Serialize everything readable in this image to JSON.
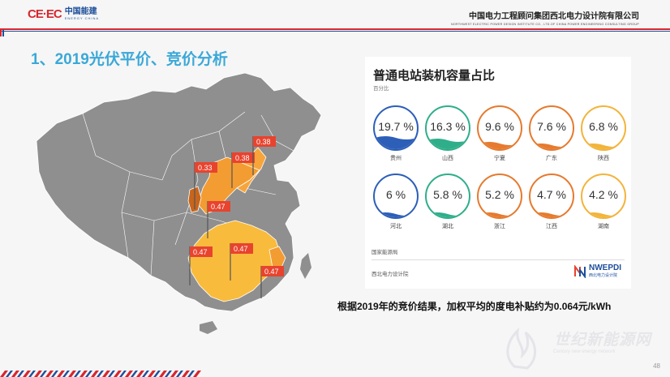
{
  "header": {
    "logo_mark_left": "CE",
    "logo_mark_right": "EC",
    "logo_cn": "中国能建",
    "logo_en": "ENERGY CHINA",
    "company_cn": "中国电力工程顾问集团西北电力设计院有限公司",
    "company_en": "NORTHWEST ELECTRIC POWER DESIGN INSTITUTE CO., LTD.OF CHINA POWER ENGINEERING CONSULTING GROUP"
  },
  "slide_title": "1、2019光伏平价、竞价分析",
  "map": {
    "flags": [
      {
        "id": "flag-1",
        "label": "0.33"
      },
      {
        "id": "flag-2",
        "label": "0.38"
      },
      {
        "id": "flag-3",
        "label": "0.38"
      },
      {
        "id": "flag-4",
        "label": "0.47"
      },
      {
        "id": "flag-5",
        "label": "0.47"
      },
      {
        "id": "flag-6",
        "label": "0.47"
      },
      {
        "id": "flag-7",
        "label": "0.47"
      }
    ]
  },
  "panel": {
    "title": "普通电站装机容量占比",
    "subtitle": "百分比",
    "source_1": "国家能源局",
    "source_2": "西北电力设计院",
    "logo_text": "NWEPDI",
    "logo_sub": "西北电力设计院"
  },
  "chart_data": {
    "type": "table",
    "title": "普通电站装机容量占比",
    "unit": "百分比",
    "categories": [
      "贵州",
      "山西",
      "宁夏",
      "广东",
      "陕西",
      "河北",
      "湖北",
      "浙江",
      "江西",
      "湖南"
    ],
    "values": [
      19.7,
      16.3,
      9.6,
      7.6,
      6.8,
      6,
      5.8,
      5.2,
      4.7,
      4.2
    ],
    "display": [
      "19.7 %",
      "16.3 %",
      "9.6 %",
      "7.6 %",
      "6.8 %",
      "6 %",
      "5.8 %",
      "5.2 %",
      "4.7 %",
      "4.2 %"
    ],
    "colors": [
      "#2d5fb8",
      "#2fae8a",
      "#e67a2e",
      "#e67a2e",
      "#f2b43a",
      "#2d5fb8",
      "#2fae8a",
      "#e67a2e",
      "#e67a2e",
      "#f2b43a"
    ]
  },
  "conclusion": "根据2019年的竞价结果，加权平均的度电补贴约为0.064元/kWh",
  "watermark": {
    "cn": "世纪新能源网",
    "en": "Century new energy network"
  },
  "page_number": "48"
}
